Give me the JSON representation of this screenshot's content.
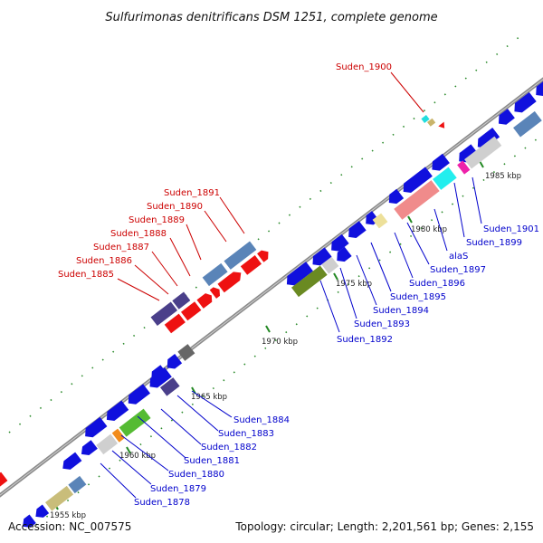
{
  "title": "Sulfurimonas denitrificans DSM 1251, complete genome",
  "accession": "Accession: NC_007575",
  "topology": "Topology: circular; Length: 2,201,561 bp; Genes: 2,155",
  "colors": {
    "forward_label": "#cc0000",
    "reverse_label": "#0000cc",
    "cds_reverse": "#1010dd",
    "cds_forward": "#ee1111",
    "backbone": "#888888",
    "tick": "#228822"
  },
  "kbp_marks": [
    "1955 kbp",
    "1960 kbp",
    "1965 kbp",
    "1970 kbp",
    "1975 kbp",
    "1980 kbp",
    "1985 kbp"
  ],
  "upper_labels": [
    "Suden_1900",
    "Suden_1891",
    "Suden_1890",
    "Suden_1889",
    "Suden_1888",
    "Suden_1887",
    "Suden_1886",
    "Suden_1885"
  ],
  "lower_labels": [
    "Suden_1901",
    "Suden_1899",
    "alaS",
    "Suden_1897",
    "Suden_1896",
    "Suden_1895",
    "Suden_1894",
    "Suden_1893",
    "Suden_1892",
    "Suden_1884",
    "Suden_1883",
    "Suden_1882",
    "Suden_1881",
    "Suden_1880",
    "Suden_1879",
    "Suden_1878"
  ]
}
